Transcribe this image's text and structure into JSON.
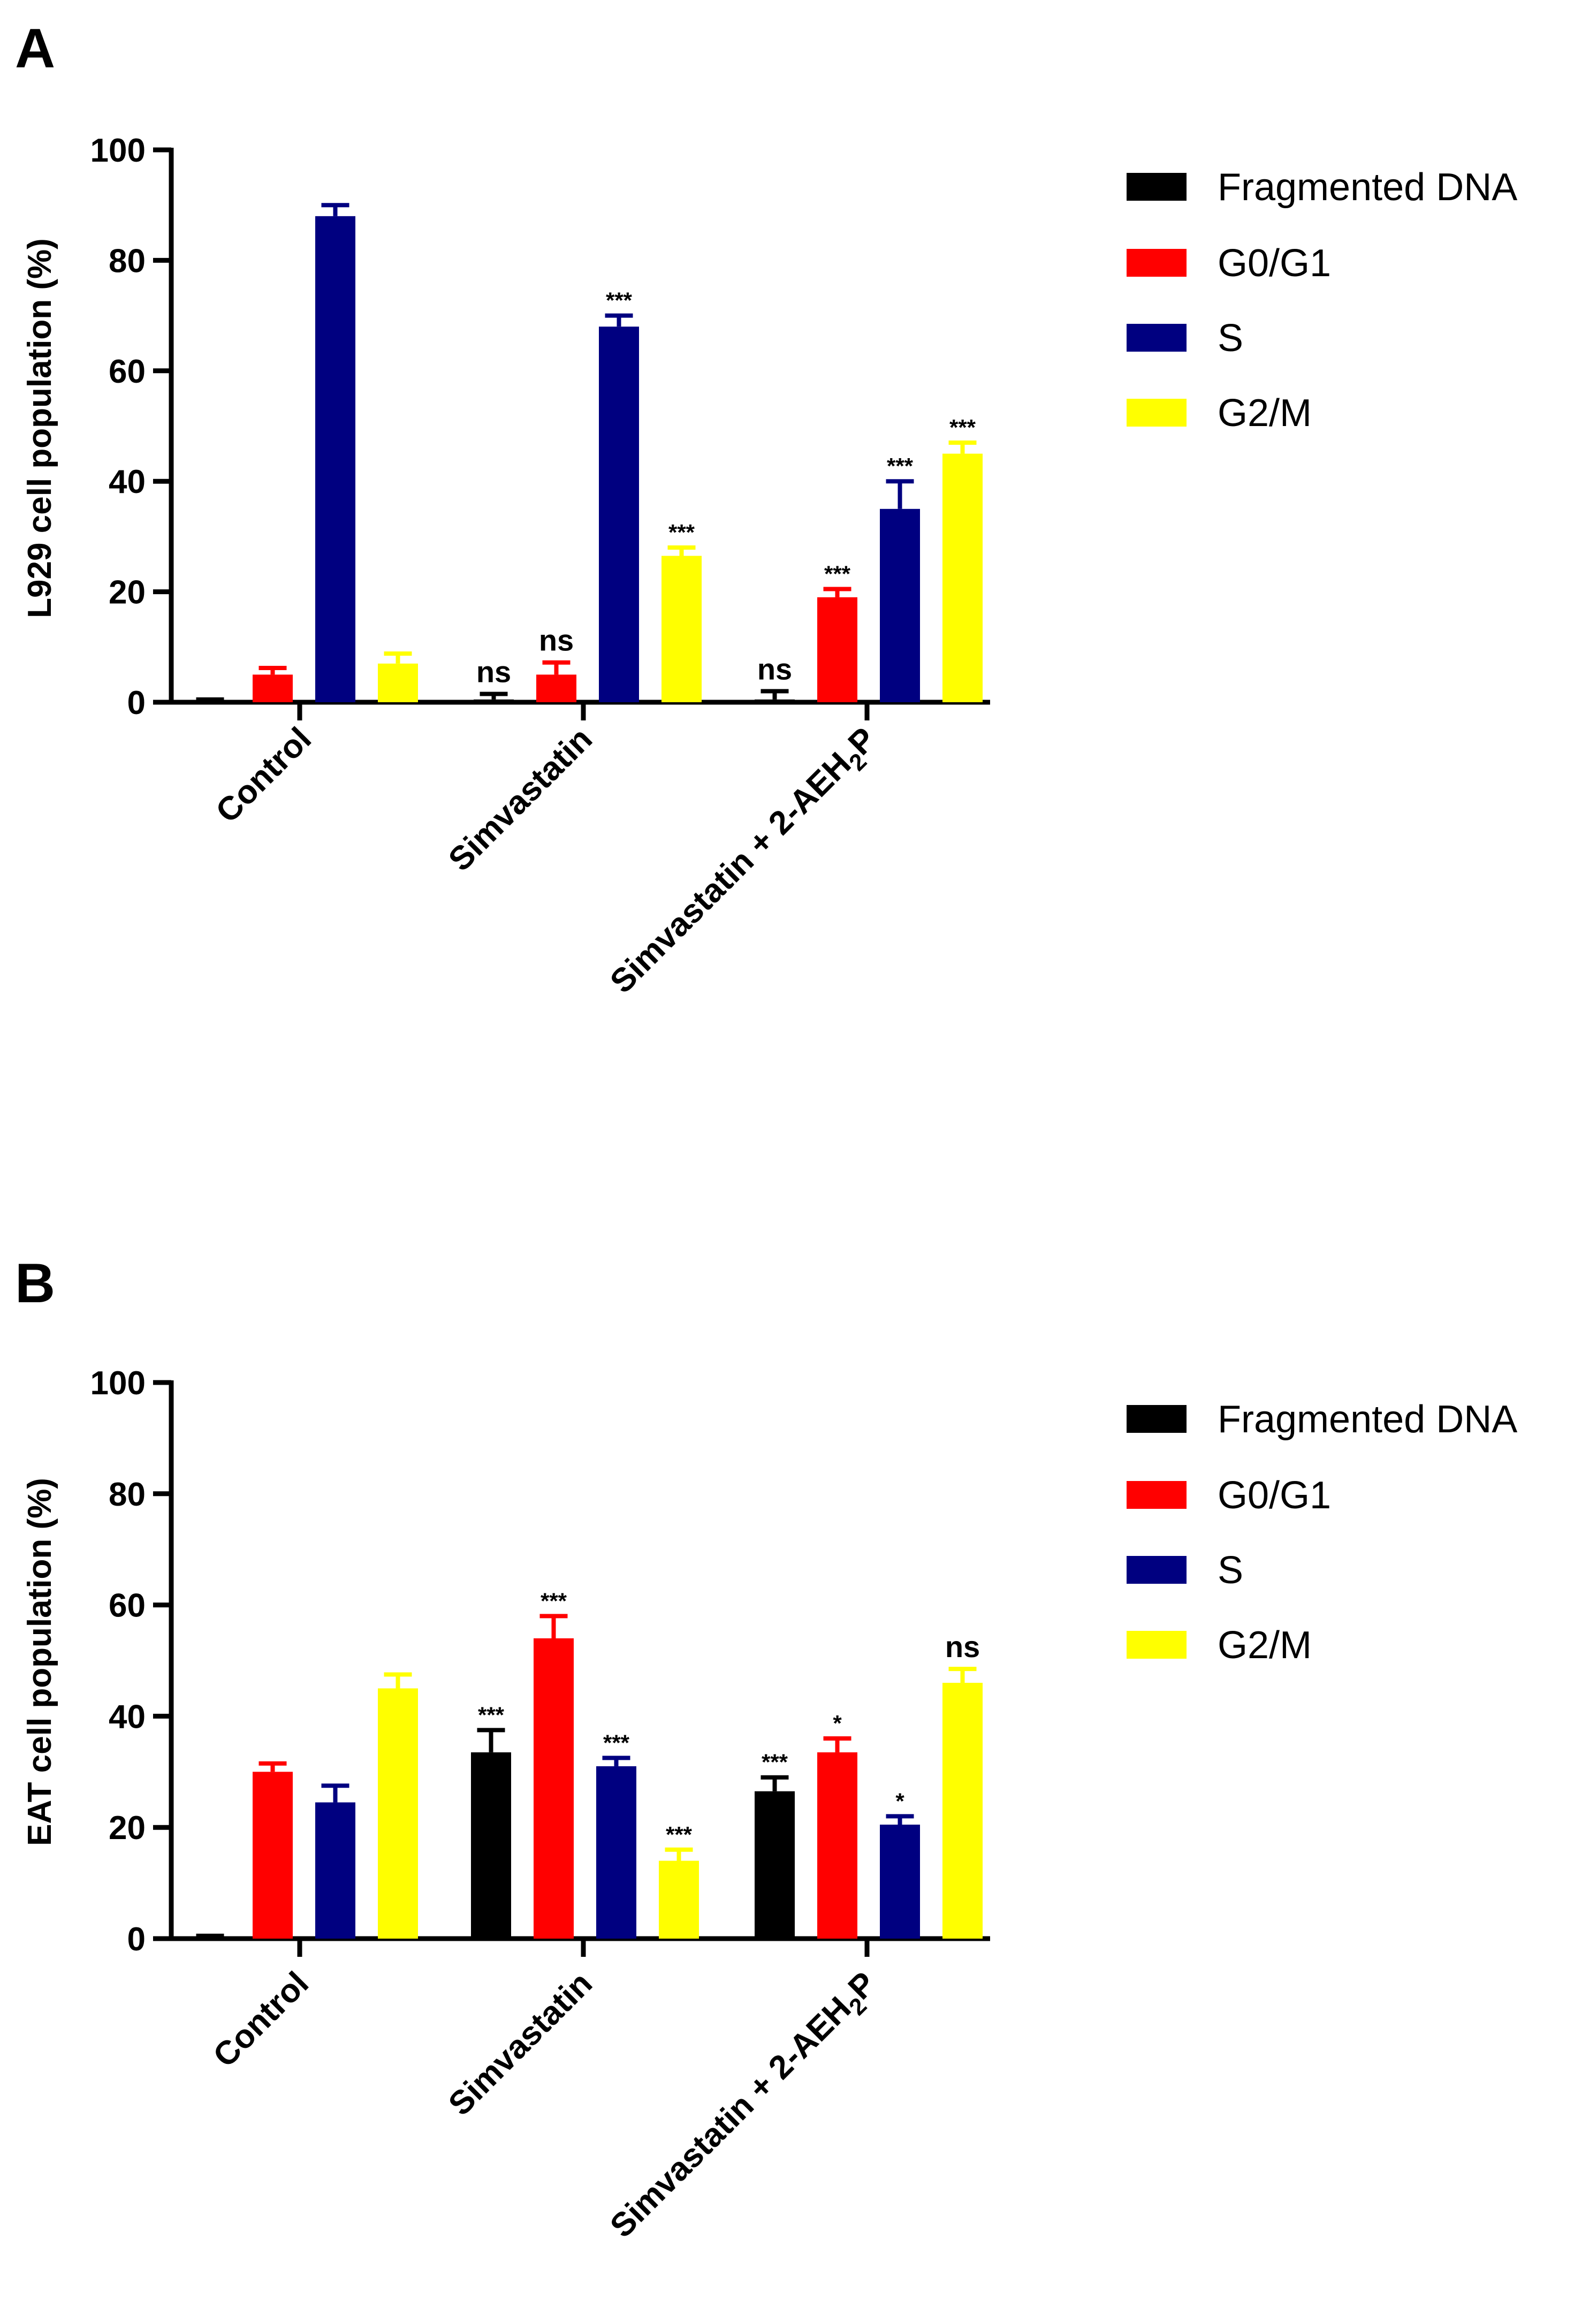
{
  "chart_data": [
    {
      "panel": "A",
      "type": "bar",
      "title": "",
      "xlabel": "",
      "ylabel": "L929 cell population (%)",
      "ylim": [
        0,
        100
      ],
      "yticks": [
        "0",
        "20",
        "40",
        "60",
        "80",
        "100"
      ],
      "categories": [
        {
          "label": "Control"
        },
        {
          "label": "Simvastatin"
        },
        {
          "label_pre": "Simvastatin + 2-AEH",
          "label_sub": "2",
          "label_post": "P"
        }
      ],
      "series": [
        {
          "name": "Fragmented DNA",
          "color": "#000000",
          "values": [
            0.3,
            0.5,
            0.5
          ],
          "errors": [
            0.2,
            1.0,
            1.5
          ],
          "sig": [
            "",
            "ns",
            "ns"
          ]
        },
        {
          "name": "G0/G1",
          "color": "#ff0000",
          "values": [
            5,
            5,
            19
          ],
          "errors": [
            1.2,
            2.2,
            1.5
          ],
          "sig": [
            "",
            "ns",
            "***"
          ]
        },
        {
          "name": "S",
          "color": "#000080",
          "values": [
            88,
            68,
            35
          ],
          "errors": [
            2,
            2,
            5
          ],
          "sig": [
            "",
            "***",
            "***"
          ]
        },
        {
          "name": "G2/M",
          "color": "#ffff00",
          "values": [
            7,
            26.5,
            45
          ],
          "errors": [
            1.8,
            1.5,
            2
          ],
          "sig": [
            "",
            "***",
            "***"
          ]
        }
      ]
    },
    {
      "panel": "B",
      "type": "bar",
      "title": "",
      "xlabel": "",
      "ylabel": "EAT cell population (%)",
      "ylim": [
        0,
        100
      ],
      "yticks": [
        "0",
        "20",
        "40",
        "60",
        "80",
        "100"
      ],
      "categories": [
        {
          "label": "Control"
        },
        {
          "label": "Simvastatin"
        },
        {
          "label_pre": "Simvastatin + 2-AEH",
          "label_sub": "2",
          "label_post": "P"
        }
      ],
      "series": [
        {
          "name": "Fragmented DNA",
          "color": "#000000",
          "values": [
            0.3,
            33.5,
            26.5
          ],
          "errors": [
            0.2,
            4,
            2.5
          ],
          "sig": [
            "",
            "***",
            "***"
          ]
        },
        {
          "name": "G0/G1",
          "color": "#ff0000",
          "values": [
            30,
            54,
            33.5
          ],
          "errors": [
            1.5,
            4,
            2.5
          ],
          "sig": [
            "",
            "***",
            "*"
          ]
        },
        {
          "name": "S",
          "color": "#000080",
          "values": [
            24.5,
            31,
            20.5
          ],
          "errors": [
            3,
            1.5,
            1.5
          ],
          "sig": [
            "",
            "***",
            "*"
          ]
        },
        {
          "name": "G2/M",
          "color": "#ffff00",
          "values": [
            45,
            14,
            46
          ],
          "errors": [
            2.5,
            2,
            2.5
          ],
          "sig": [
            "",
            "***",
            "ns"
          ]
        }
      ]
    }
  ]
}
